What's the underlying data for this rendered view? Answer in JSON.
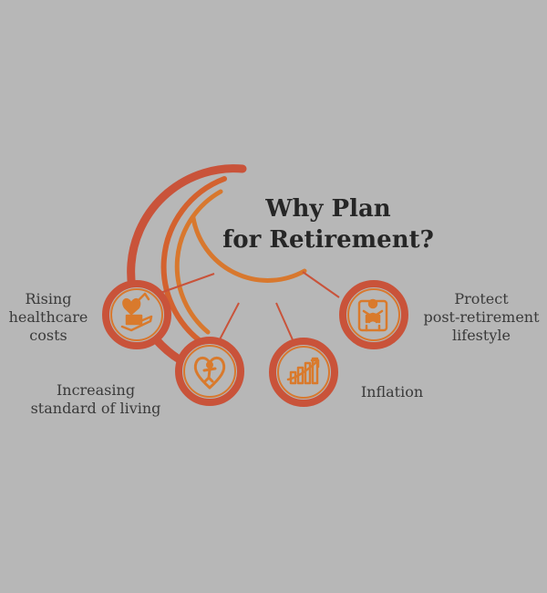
{
  "title": {
    "line1": "Why Plan",
    "line2": "for Retirement?"
  },
  "items": [
    {
      "key": "healthcare",
      "icon": "healthcare-hand-heart-icon",
      "lines": [
        "Rising",
        "healthcare",
        "costs"
      ]
    },
    {
      "key": "living",
      "icon": "heart-person-icon",
      "lines": [
        "Increasing",
        "standard of living"
      ]
    },
    {
      "key": "inflation",
      "icon": "rising-bar-chart-icon",
      "lines": [
        "Inflation"
      ]
    },
    {
      "key": "protect",
      "icon": "elderly-reading-icon",
      "lines": [
        "Protect",
        "post-retirement",
        "lifestyle"
      ]
    }
  ],
  "colors": {
    "background": "#b7b7b7",
    "ring_outer": "#c9533a",
    "ring_inner": "#d8782e",
    "icon": "#d97a2c"
  }
}
